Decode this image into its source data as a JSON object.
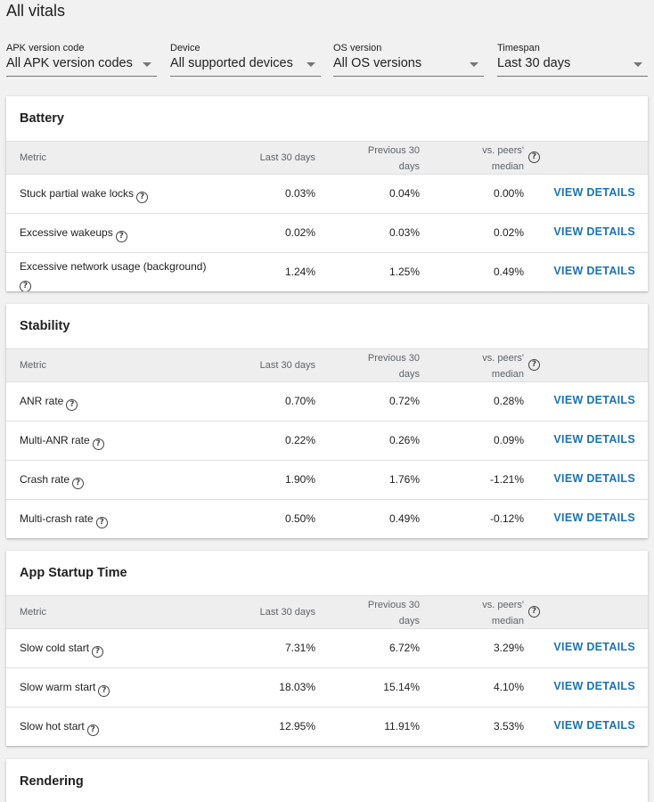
{
  "page": {
    "title": "All vitals"
  },
  "filters": [
    {
      "label": "APK version code",
      "value": "All APK version codes"
    },
    {
      "label": "Device",
      "value": "All supported devices"
    },
    {
      "label": "OS version",
      "value": "All OS versions"
    },
    {
      "label": "Timespan",
      "value": "Last 30 days"
    }
  ],
  "table_headers": {
    "metric": "Metric",
    "last": "Last 30 days",
    "prev_line1": "Previous 30",
    "prev_line2": "days",
    "peers_line1": "vs. peers'",
    "peers_line2": "median"
  },
  "help_glyph": "?",
  "view_details_label": "VIEW DETAILS",
  "sections": [
    {
      "title": "Battery",
      "rows": [
        {
          "metric": "Stuck partial wake locks",
          "last": "0.03%",
          "prev": "0.04%",
          "peers": "0.00%"
        },
        {
          "metric": "Excessive wakeups",
          "last": "0.02%",
          "prev": "0.03%",
          "peers": "0.02%"
        },
        {
          "metric": "Excessive network usage (background)",
          "last": "1.24%",
          "prev": "1.25%",
          "peers": "0.49%"
        }
      ]
    },
    {
      "title": "Stability",
      "rows": [
        {
          "metric": "ANR rate",
          "last": "0.70%",
          "prev": "0.72%",
          "peers": "0.28%"
        },
        {
          "metric": "Multi-ANR rate",
          "last": "0.22%",
          "prev": "0.26%",
          "peers": "0.09%"
        },
        {
          "metric": "Crash rate",
          "last": "1.90%",
          "prev": "1.76%",
          "peers": "-1.21%"
        },
        {
          "metric": "Multi-crash rate",
          "last": "0.50%",
          "prev": "0.49%",
          "peers": "-0.12%"
        }
      ]
    },
    {
      "title": "App Startup Time",
      "rows": [
        {
          "metric": "Slow cold start",
          "last": "7.31%",
          "prev": "6.72%",
          "peers": "3.29%"
        },
        {
          "metric": "Slow warm start",
          "last": "18.03%",
          "prev": "15.14%",
          "peers": "4.10%"
        },
        {
          "metric": "Slow hot start",
          "last": "12.95%",
          "prev": "11.91%",
          "peers": "3.53%"
        }
      ]
    },
    {
      "title": "Rendering",
      "rows": []
    }
  ]
}
